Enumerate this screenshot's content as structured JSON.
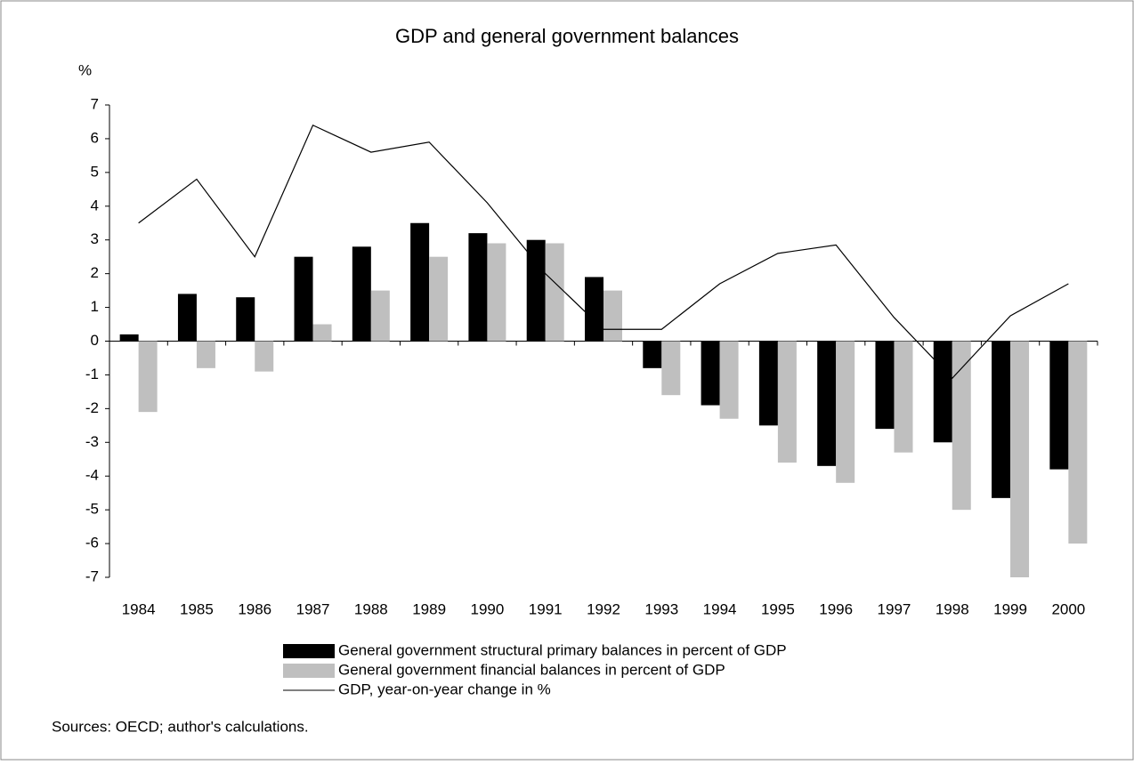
{
  "chart_data": {
    "type": "bar-line",
    "title": "GDP and general government balances",
    "y_label": "%",
    "categories": [
      "1984",
      "1985",
      "1986",
      "1987",
      "1988",
      "1989",
      "1990",
      "1991",
      "1992",
      "1993",
      "1994",
      "1995",
      "1996",
      "1997",
      "1998",
      "1999",
      "2000"
    ],
    "series": [
      {
        "name": "General government structural primary balances in percent of GDP",
        "type": "bar",
        "color": "#000000",
        "values": [
          0.2,
          1.4,
          1.3,
          2.5,
          2.8,
          3.5,
          3.2,
          3.0,
          1.9,
          -0.8,
          -1.9,
          -2.5,
          -3.7,
          -2.6,
          -3.0,
          -4.65,
          -3.8
        ]
      },
      {
        "name": "General government financial balances in percent of GDP",
        "type": "bar",
        "color": "#bfbfbf",
        "values": [
          -2.1,
          -0.8,
          -0.9,
          0.5,
          1.5,
          2.5,
          2.9,
          2.9,
          1.5,
          -1.6,
          -2.3,
          -3.6,
          -4.2,
          -3.3,
          -5.0,
          -7.0,
          -6.0
        ]
      },
      {
        "name": "GDP, year-on-year change in %",
        "type": "line",
        "color": "#000000",
        "values": [
          3.5,
          4.8,
          2.5,
          6.4,
          5.6,
          5.9,
          4.1,
          2.0,
          0.35,
          0.35,
          1.7,
          2.6,
          2.85,
          0.7,
          -1.1,
          0.75,
          1.7
        ]
      }
    ],
    "ylim": [
      -7,
      7
    ],
    "yticks": [
      -7,
      -6,
      -5,
      -4,
      -3,
      -2,
      -1,
      0,
      1,
      2,
      3,
      4,
      5,
      6,
      7
    ],
    "source": "Sources: OECD; author's calculations."
  }
}
